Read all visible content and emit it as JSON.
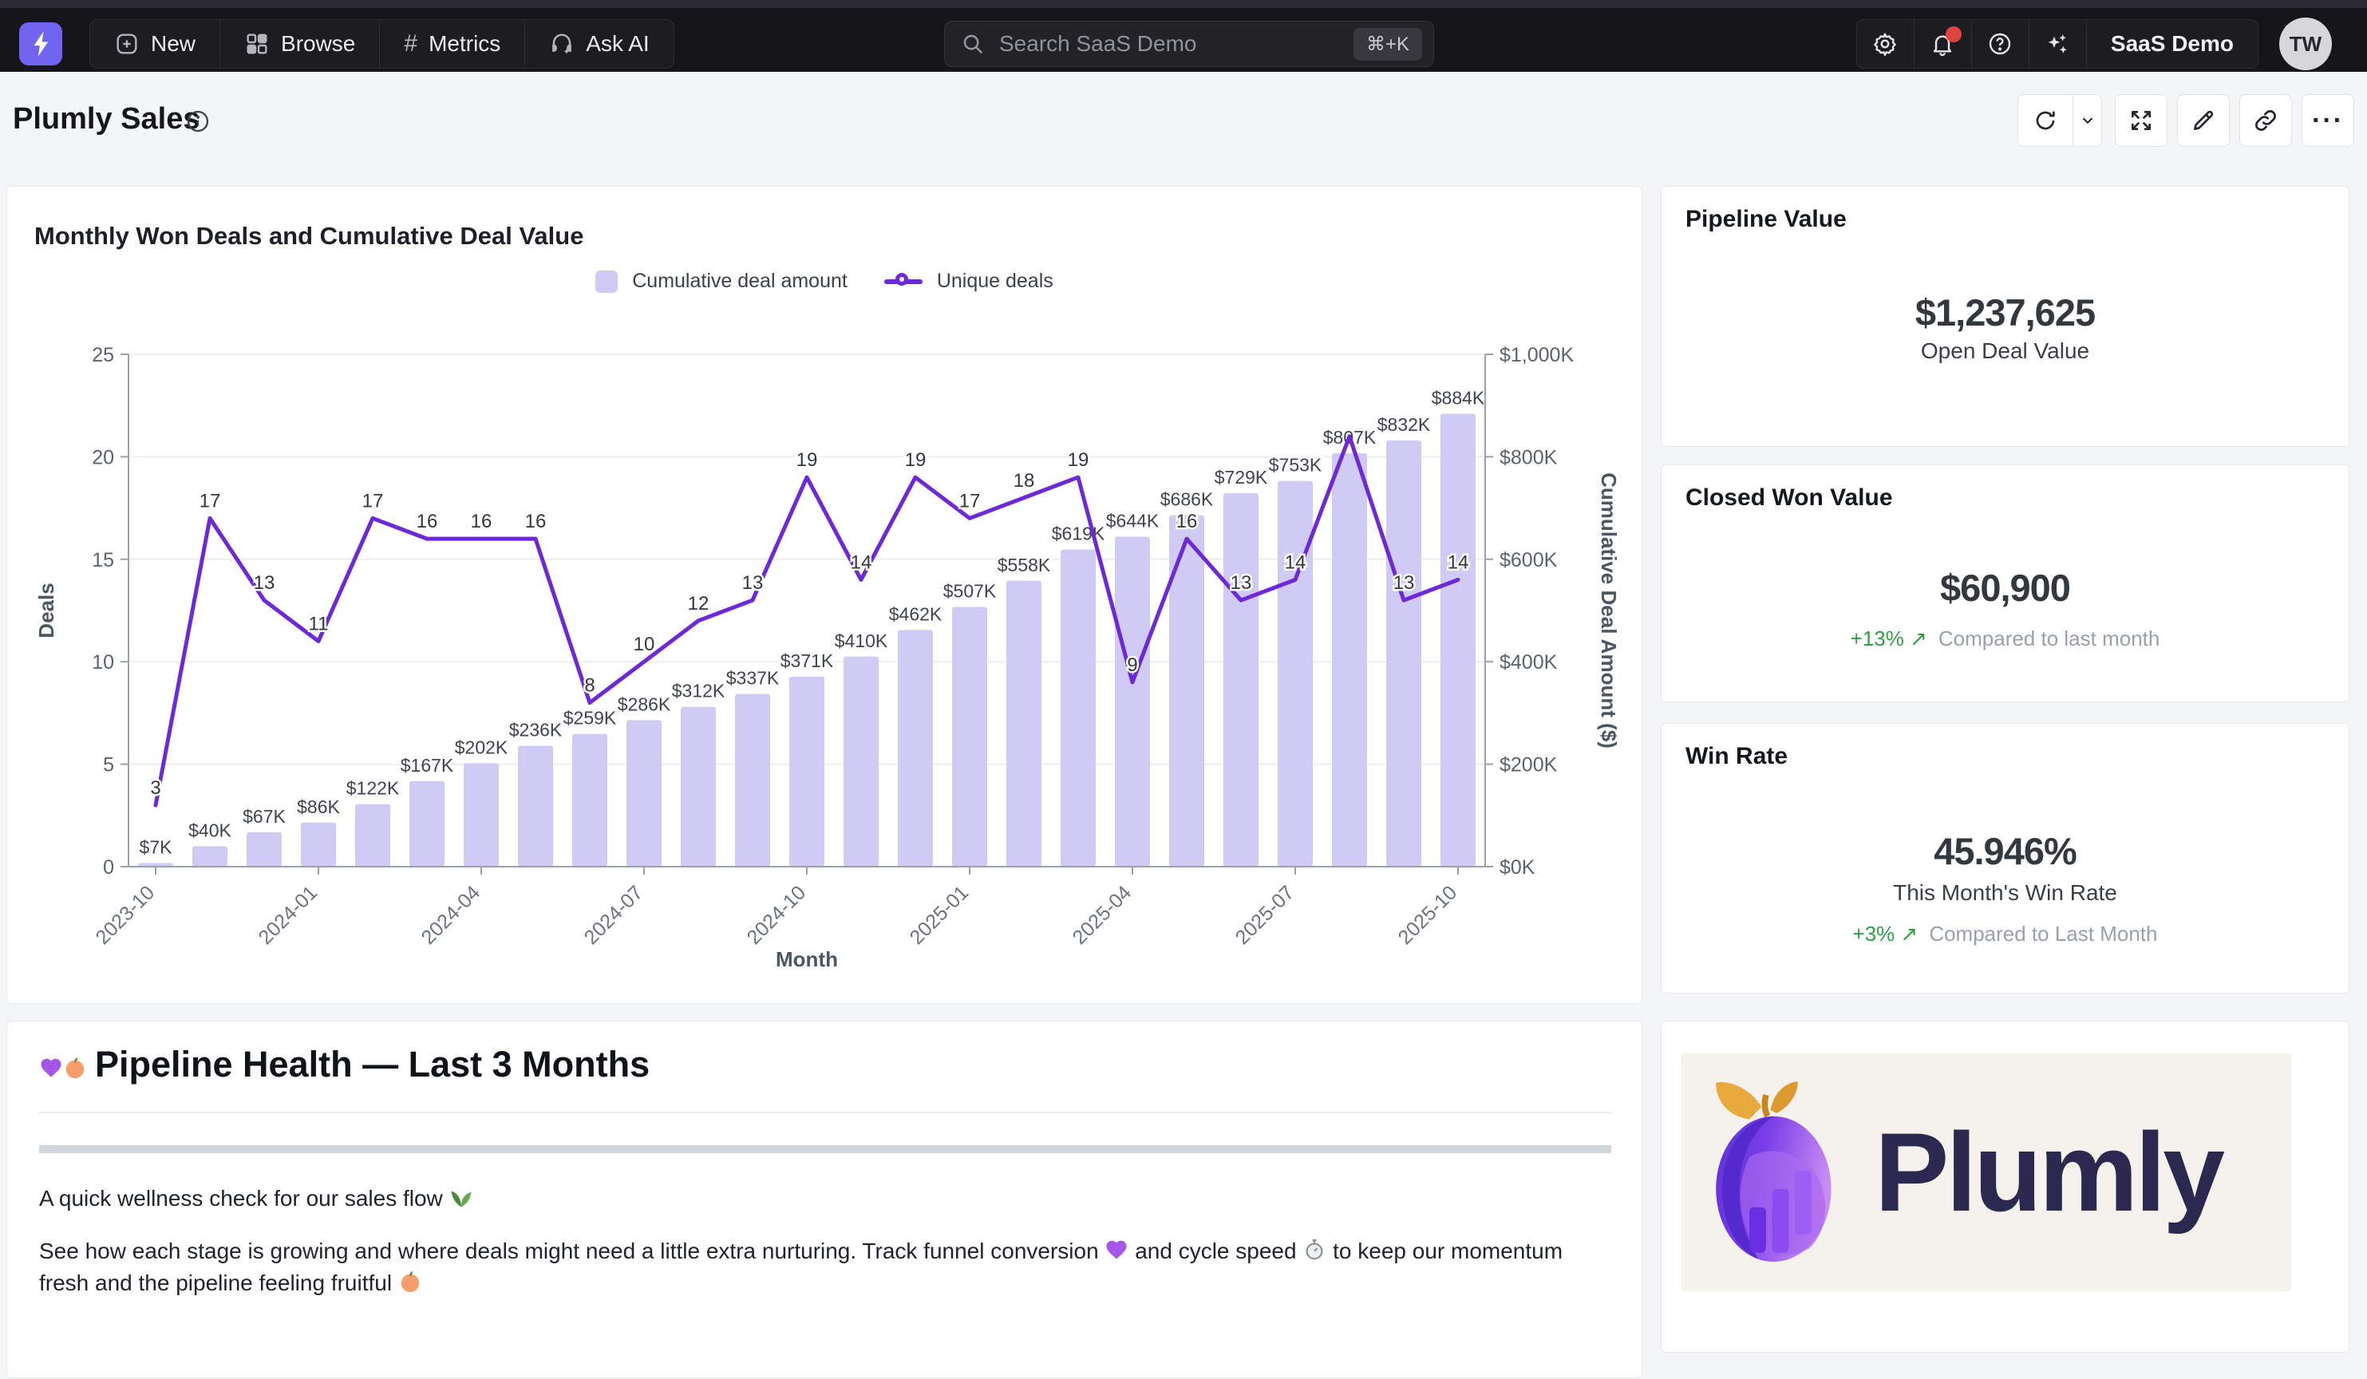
{
  "nav": {
    "items": [
      {
        "label": "New"
      },
      {
        "label": "Browse"
      },
      {
        "label": "Metrics"
      },
      {
        "label": "Ask AI"
      }
    ],
    "search": {
      "placeholder": "Search SaaS Demo",
      "shortcut": "⌘+K"
    },
    "org_label": "SaaS Demo",
    "avatar_initials": "TW"
  },
  "page": {
    "title": "Plumly Sales"
  },
  "toolbar": {
    "more_label": "···"
  },
  "kpis": {
    "pipeline": {
      "title": "Pipeline Value",
      "value": "$1,237,625",
      "subtitle": "Open Deal Value"
    },
    "closed_won": {
      "title": "Closed Won Value",
      "value": "$60,900",
      "delta": "+13% ↗",
      "compare": "Compared to last month"
    },
    "win_rate": {
      "title": "Win Rate",
      "value": "45.946%",
      "subtitle": "This Month's Win Rate",
      "delta": "+3% ↗",
      "compare": "Compared to Last Month"
    }
  },
  "notes": {
    "heading_emoji": "💜🍑",
    "heading_text": "Pipeline Health — Last 3 Months",
    "p1": "A quick wellness check for our sales flow 🌿",
    "p2": "See how each stage is growing and where deals might need a little extra nurturing. Track funnel conversion 💜 and cycle speed ⏱ to keep our momentum fresh and the pipeline feeling fruitful 🍑"
  },
  "brand": {
    "wordmark": "Plumly"
  },
  "chart_data": {
    "type": "combo_bar_line",
    "title": "Monthly Won Deals and Cumulative Deal Value",
    "xlabel": "Month",
    "categories": [
      "2023-10",
      "2023-11",
      "2023-12",
      "2024-01",
      "2024-02",
      "2024-03",
      "2024-04",
      "2024-05",
      "2024-06",
      "2024-07",
      "2024-08",
      "2024-09",
      "2024-10",
      "2024-11",
      "2024-12",
      "2025-01",
      "2025-02",
      "2025-03",
      "2025-04",
      "2025-05",
      "2025-06",
      "2025-07",
      "2025-08",
      "2025-09",
      "2025-10"
    ],
    "x_tick_labels": [
      "2023-10",
      "2024-01",
      "2024-04",
      "2024-07",
      "2024-10",
      "2025-01",
      "2025-04",
      "2025-07",
      "2025-10"
    ],
    "x_tick_indices": [
      0,
      3,
      6,
      9,
      12,
      15,
      18,
      21,
      24
    ],
    "series": [
      {
        "name": "Cumulative deal amount",
        "type": "bar",
        "axis": "right",
        "color": "#cfcbf5",
        "values_k_usd": [
          7,
          40,
          67,
          86,
          122,
          167,
          202,
          236,
          259,
          286,
          312,
          337,
          371,
          410,
          462,
          507,
          558,
          619,
          644,
          686,
          729,
          753,
          807,
          832,
          884
        ],
        "labels": [
          "$7K",
          "$40K",
          "$67K",
          "$86K",
          "$122K",
          "$167K",
          "$202K",
          "$236K",
          "$259K",
          "$286K",
          "$312K",
          "$337K",
          "$371K",
          "$410K",
          "$462K",
          "$507K",
          "$558K",
          "$619K",
          "$644K",
          "$686K",
          "$729K",
          "$753K",
          "$807K",
          "$832K",
          "$884K"
        ]
      },
      {
        "name": "Unique deals",
        "type": "line",
        "axis": "left",
        "color": "#6d28d9",
        "values": [
          3,
          17,
          13,
          11,
          17,
          16,
          16,
          16,
          8,
          10,
          12,
          13,
          19,
          14,
          19,
          17,
          18,
          19,
          9,
          16,
          13,
          14,
          21,
          13,
          14
        ],
        "labels": [
          "3",
          "17",
          "13",
          "11",
          "17",
          "16",
          "16",
          "16",
          "8",
          "10",
          "12",
          "13",
          "19",
          "14",
          "19",
          "17",
          "18",
          "19",
          "9",
          "16",
          "13",
          "14",
          "",
          "13",
          "14"
        ]
      }
    ],
    "left_axis": {
      "label": "Deals",
      "min": 0,
      "max": 25,
      "ticks": [
        0,
        5,
        10,
        15,
        20,
        25
      ]
    },
    "right_axis": {
      "label": "Cumulative Deal Amount ($)",
      "min": 0,
      "max": 1000,
      "ticks": [
        "$0K",
        "$200K",
        "$400K",
        "$600K",
        "$800K",
        "$1,000K"
      ]
    },
    "legend_position": "top-center",
    "grid": true
  }
}
